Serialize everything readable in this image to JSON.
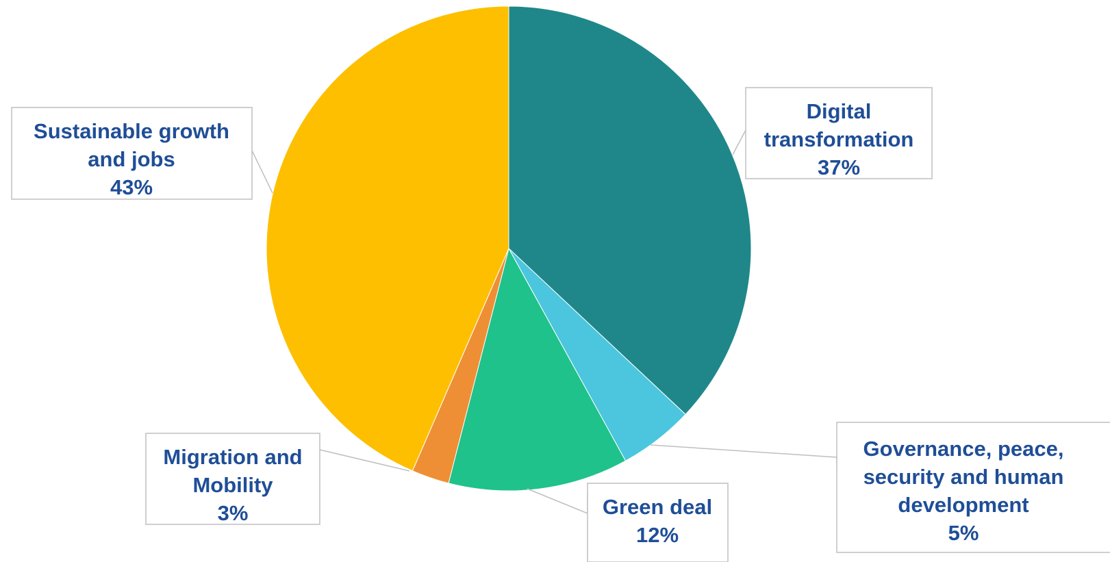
{
  "chart_data": {
    "type": "pie",
    "start_angle_deg": 0,
    "direction": "clockwise",
    "slices": [
      {
        "label_lines": [
          "Digital",
          "transformation"
        ],
        "pct_label": "37%",
        "value": 37,
        "color": "#1f8789"
      },
      {
        "label_lines": [
          "Governance, peace,",
          "security and human",
          "development"
        ],
        "pct_label": "5%",
        "value": 5,
        "color": "#4bc6de"
      },
      {
        "label_lines": [
          "Green deal"
        ],
        "pct_label": "12%",
        "value": 12,
        "color": "#1fc28a"
      },
      {
        "label_lines": [
          "Migration and",
          "Mobility"
        ],
        "pct_label": "3%",
        "value": 2.5,
        "color": "#ee8f35"
      },
      {
        "label_lines": [
          "Sustainable growth",
          "and jobs"
        ],
        "pct_label": "43%",
        "value": 43.5,
        "color": "#fdbf00"
      }
    ]
  }
}
